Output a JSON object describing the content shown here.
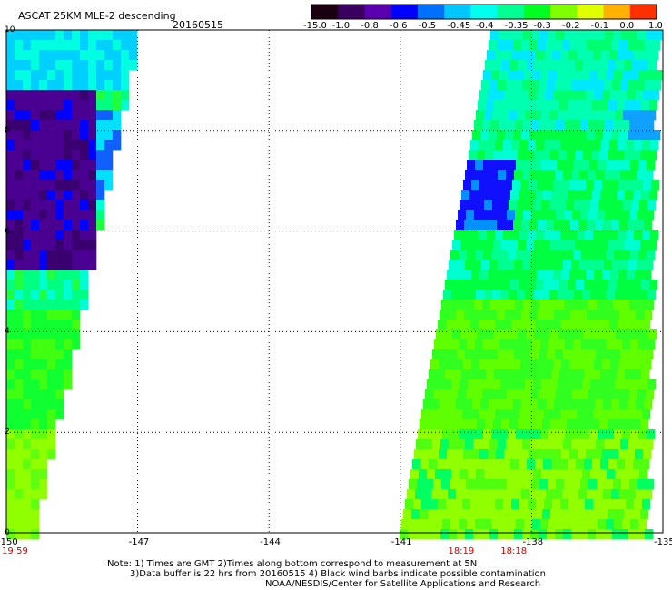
{
  "header": {
    "title": "ASCAT 25KM MLE-2 descending",
    "date": "20160515"
  },
  "colorbar": {
    "labels": [
      "-15.0",
      "-1.0",
      "-0.8",
      "-0.6",
      "-0.5",
      "-0.45",
      "-0.4",
      "-0.35",
      "-0.3",
      "-0.2",
      "-0.1",
      "0.0",
      "1.0"
    ],
    "colors": [
      "#1a0010",
      "#3a0060",
      "#5a00b0",
      "#0000ff",
      "#0070ff",
      "#00c8ff",
      "#00ffee",
      "#00ff90",
      "#00ff20",
      "#80ff00",
      "#e0ff00",
      "#ffb000",
      "#ff3000"
    ]
  },
  "axes": {
    "x_ticks": [
      "-150",
      "-147",
      "-144",
      "-141",
      "-138",
      "-135"
    ],
    "y_ticks": [
      "10",
      "8",
      "6",
      "4",
      "2",
      "0"
    ],
    "xlim": [
      -150,
      -135
    ],
    "ylim": [
      0,
      10
    ]
  },
  "times": [
    {
      "label": "19:59",
      "lon": -150
    },
    {
      "label": "18:19",
      "lon": -139.7
    },
    {
      "label": "18:18",
      "lon": -138.5
    }
  ],
  "notes": {
    "line1": "Note: 1) Times are GMT 2)Times along bottom correspond to measurement at 5N",
    "line2": "3)Data buffer is 22 hrs from 20160515 4) Black wind barbs indicate possible contamination",
    "line3": "NOAA/NESDIS/Center for Satellite Applications and Research"
  }
}
